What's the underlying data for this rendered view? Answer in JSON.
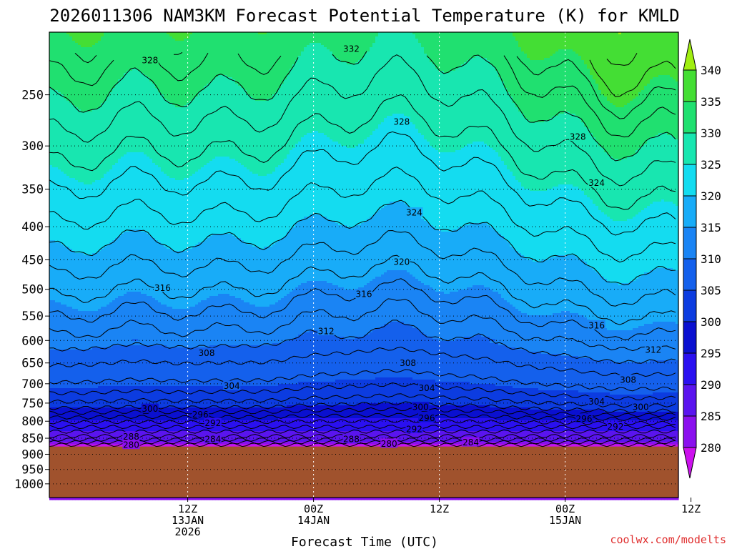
{
  "chart_data": {
    "type": "heatmap",
    "title": "2026011306 NAM3KM Forecast Potential Temperature (K) for KMLD",
    "xlabel": "Forecast Time (UTC)",
    "ylabel": "",
    "units": "K",
    "y_scale": "log",
    "ylim": [
      1050,
      200
    ],
    "xlim": [
      -5,
      45
    ],
    "x_ticks": [
      {
        "x": 6,
        "lines": [
          "12Z",
          "13JAN",
          "2026"
        ]
      },
      {
        "x": 16,
        "lines": [
          "00Z",
          "14JAN"
        ]
      },
      {
        "x": 26,
        "lines": [
          "12Z"
        ]
      },
      {
        "x": 36,
        "lines": [
          "00Z",
          "15JAN"
        ]
      },
      {
        "x": 46,
        "lines": [
          "12Z"
        ]
      }
    ],
    "y_ticks": [
      250,
      300,
      350,
      400,
      450,
      500,
      550,
      600,
      650,
      700,
      750,
      800,
      850,
      900,
      950,
      1000
    ],
    "colorbar": {
      "levels": [
        280,
        285,
        290,
        295,
        300,
        305,
        310,
        315,
        320,
        325,
        330,
        335,
        340
      ],
      "colors": [
        "#cc11ee",
        "#8a10ee",
        "#5a14ee",
        "#2a10f0",
        "#0a10d0",
        "#0c3ce0",
        "#1460ec",
        "#1a84f4",
        "#18acf8",
        "#14dcf0",
        "#18e6b0",
        "#20e070",
        "#44de34",
        "#a0ee10"
      ]
    },
    "contour_labels": [
      {
        "value": "332",
        "x": 19,
        "p": 212
      },
      {
        "value": "328",
        "x": 3,
        "p": 221
      },
      {
        "value": "328",
        "x": 23,
        "p": 275
      },
      {
        "value": "328",
        "x": 37,
        "p": 290
      },
      {
        "value": "324",
        "x": 38.5,
        "p": 342
      },
      {
        "value": "324",
        "x": 24,
        "p": 380
      },
      {
        "value": "320",
        "x": 23,
        "p": 453
      },
      {
        "value": "316",
        "x": 4,
        "p": 497
      },
      {
        "value": "316",
        "x": 20,
        "p": 508
      },
      {
        "value": "316",
        "x": 38.5,
        "p": 568
      },
      {
        "value": "312",
        "x": 17,
        "p": 580
      },
      {
        "value": "312",
        "x": 43,
        "p": 620
      },
      {
        "value": "308",
        "x": 7.5,
        "p": 627
      },
      {
        "value": "308",
        "x": 23.5,
        "p": 650
      },
      {
        "value": "308",
        "x": 41,
        "p": 690
      },
      {
        "value": "304",
        "x": 9.5,
        "p": 705
      },
      {
        "value": "304",
        "x": 25,
        "p": 710
      },
      {
        "value": "304",
        "x": 38.5,
        "p": 745
      },
      {
        "value": "300",
        "x": 3,
        "p": 765
      },
      {
        "value": "300",
        "x": 24.5,
        "p": 760
      },
      {
        "value": "300",
        "x": 42,
        "p": 760
      },
      {
        "value": "296",
        "x": 7,
        "p": 780
      },
      {
        "value": "296",
        "x": 25,
        "p": 790
      },
      {
        "value": "296",
        "x": 37.5,
        "p": 792
      },
      {
        "value": "292",
        "x": 8,
        "p": 805
      },
      {
        "value": "292",
        "x": 24,
        "p": 822
      },
      {
        "value": "292",
        "x": 40,
        "p": 815
      },
      {
        "value": "288",
        "x": 1.5,
        "p": 845
      },
      {
        "value": "288",
        "x": 19,
        "p": 852
      },
      {
        "value": "284",
        "x": 8,
        "p": 852
      },
      {
        "value": "284",
        "x": 28.5,
        "p": 862
      },
      {
        "value": "280",
        "x": 1.5,
        "p": 870
      },
      {
        "value": "280",
        "x": 22,
        "p": 866
      }
    ]
  },
  "credit": "coolwx.com/modelts"
}
